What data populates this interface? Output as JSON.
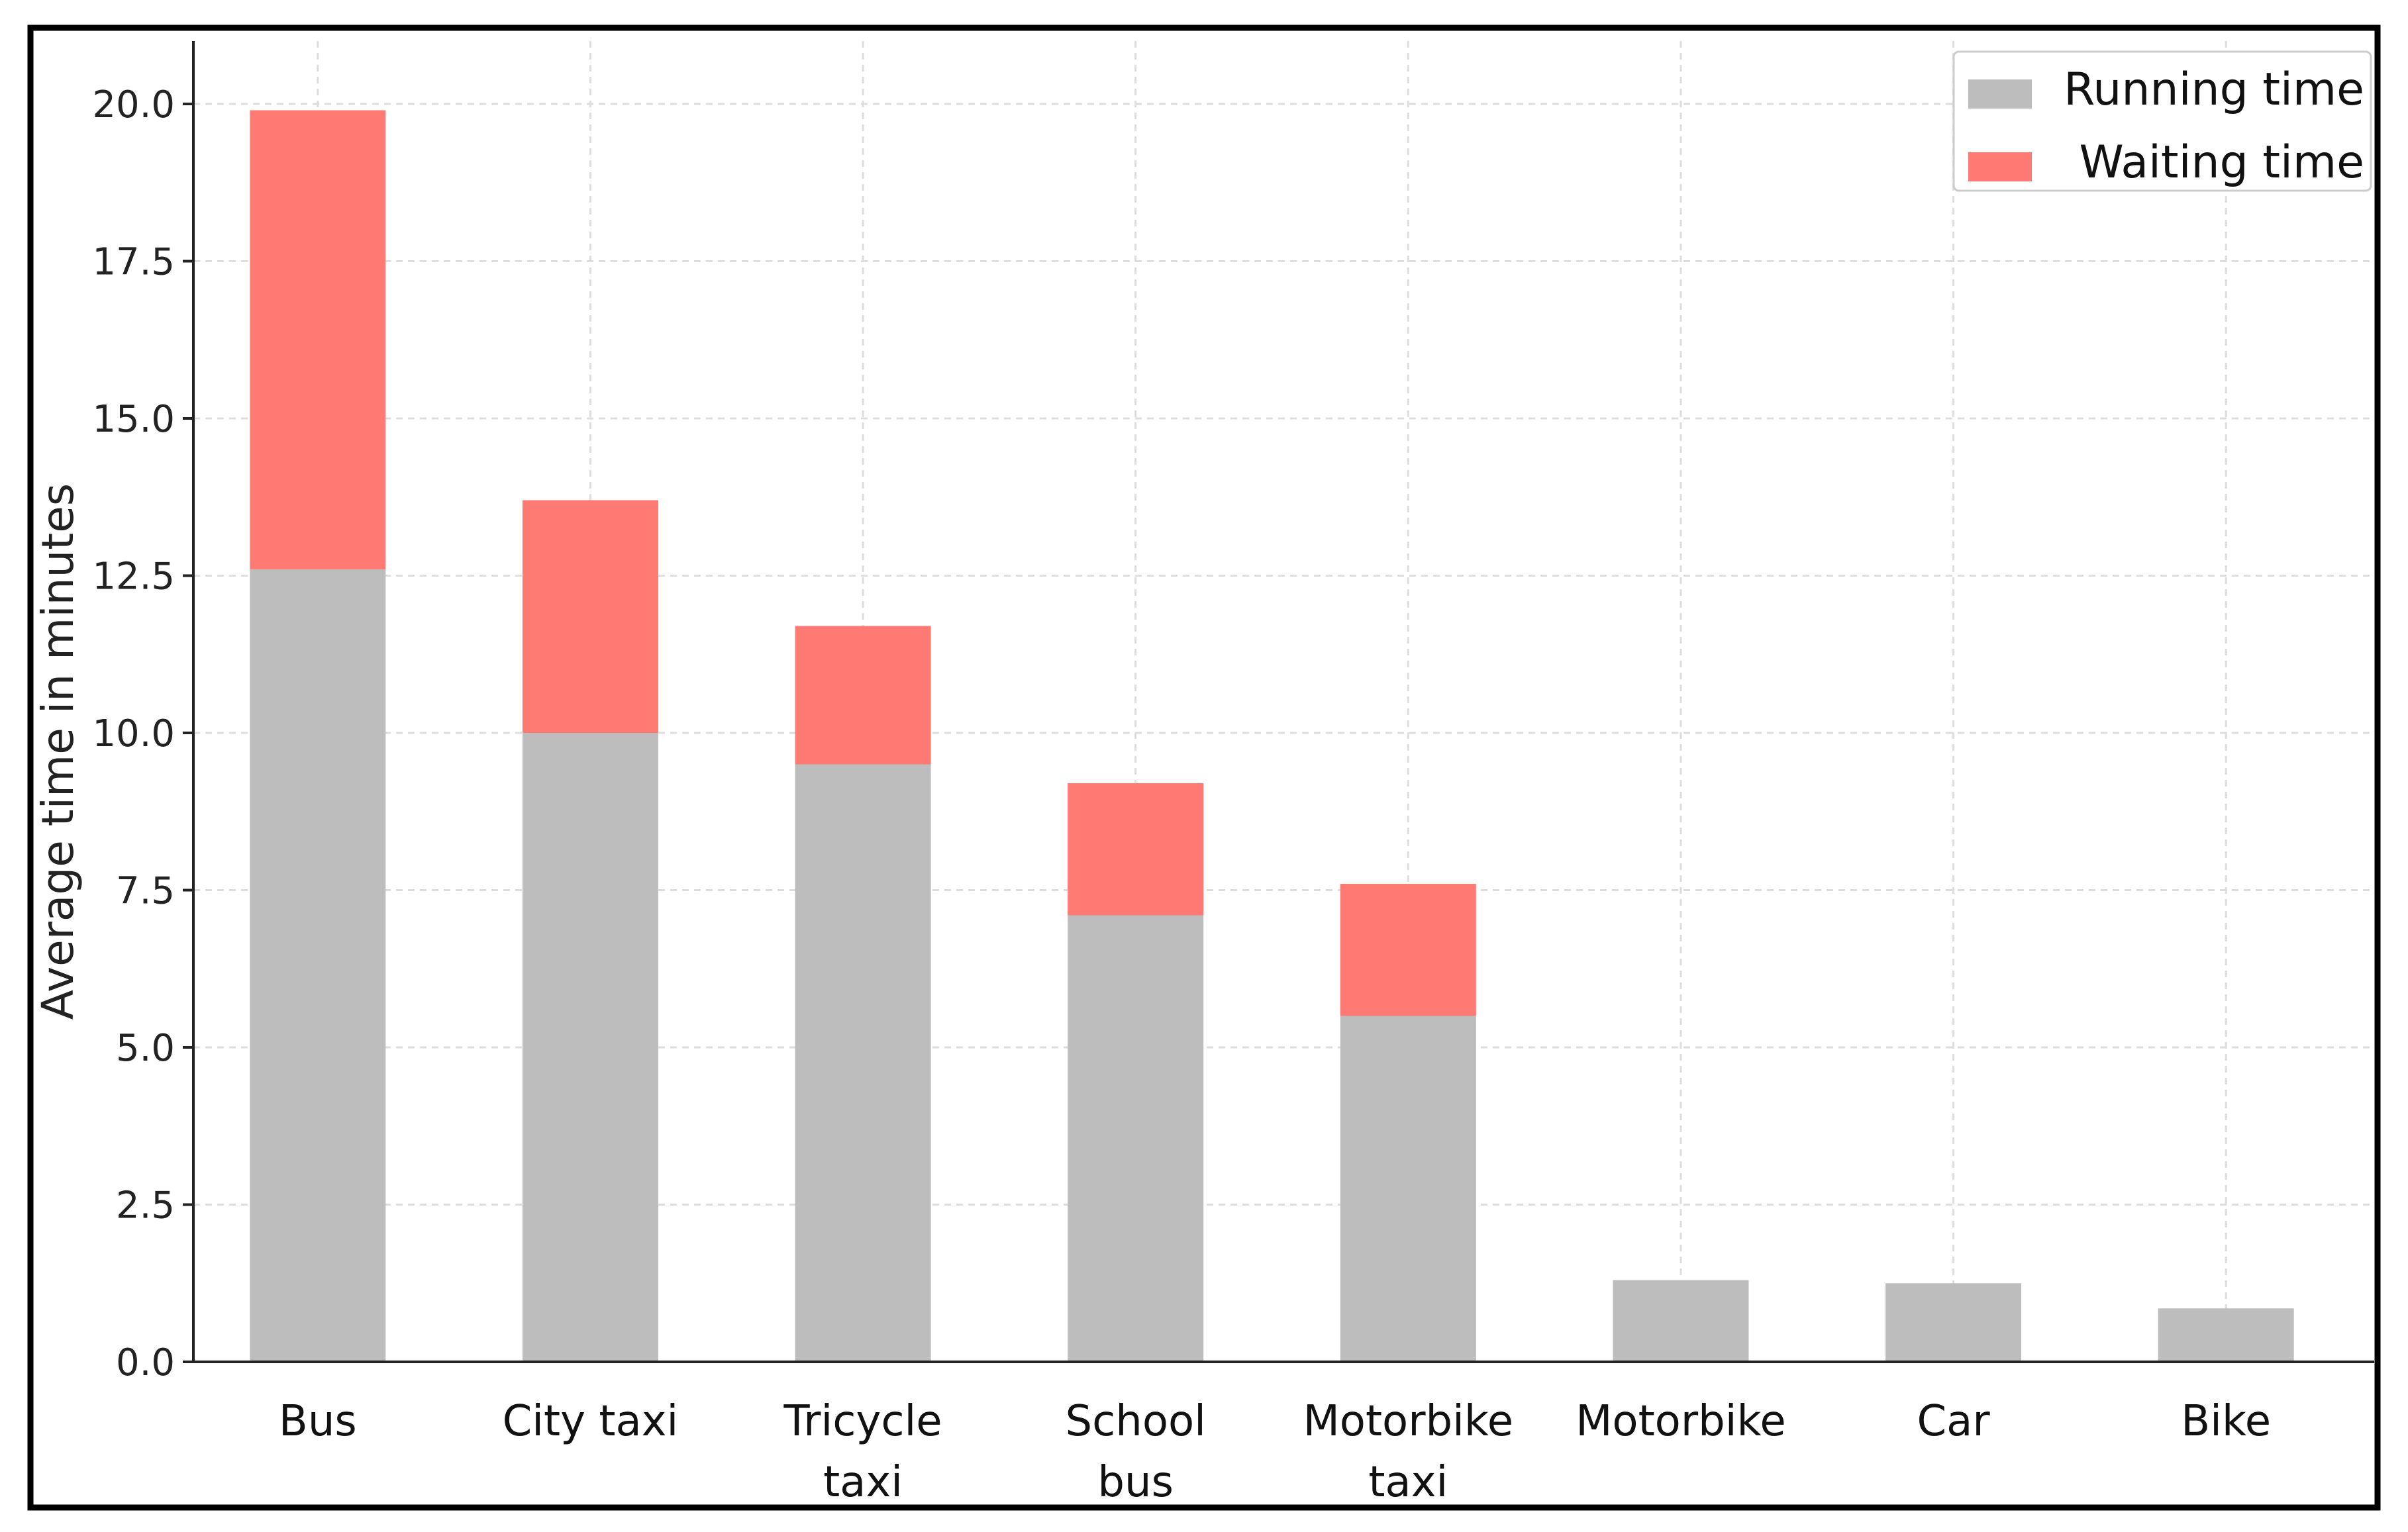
{
  "colors": {
    "running": "#bdbdbd",
    "waiting": "#ff7a72",
    "grid": "#dddddd",
    "axis": "#222222",
    "frame": "#000000"
  },
  "chart_data": {
    "type": "bar",
    "stacked": true,
    "title": "",
    "xlabel": "",
    "ylabel": "Average time in minutes",
    "ylim": [
      0,
      21
    ],
    "yticks": [
      0.0,
      2.5,
      5.0,
      7.5,
      10.0,
      12.5,
      15.0,
      17.5,
      20.0
    ],
    "ytick_labels": [
      "0.0",
      "2.5",
      "5.0",
      "7.5",
      "10.0",
      "12.5",
      "15.0",
      "17.5",
      "20.0"
    ],
    "grid": true,
    "legend_position": "top-right",
    "categories": [
      [
        "Bus"
      ],
      [
        "City taxi"
      ],
      [
        "Tricycle",
        "taxi"
      ],
      [
        "School",
        "bus"
      ],
      [
        "Motorbike",
        "taxi"
      ],
      [
        "Motorbike"
      ],
      [
        "Car"
      ],
      [
        "Bike"
      ]
    ],
    "series": [
      {
        "name": "Running time",
        "values": [
          12.6,
          10.0,
          9.5,
          7.1,
          5.5,
          1.3,
          1.25,
          0.85
        ]
      },
      {
        "name": "Waiting time",
        "values": [
          7.3,
          3.7,
          2.2,
          2.1,
          2.1,
          0,
          0,
          0
        ]
      }
    ]
  }
}
